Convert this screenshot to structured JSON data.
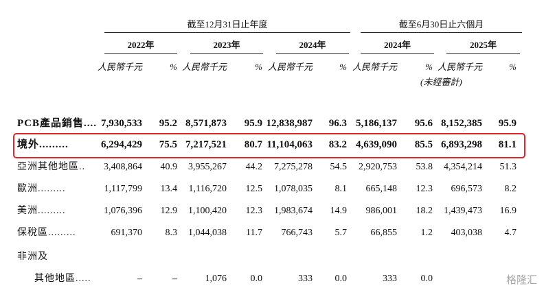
{
  "header": {
    "period_groups": [
      {
        "label": "截至12月31日止年度"
      },
      {
        "label": "截至6月30日止六個月"
      }
    ],
    "years": [
      "2022年",
      "2023年",
      "2024年",
      "2024年",
      "2025年"
    ],
    "amount_unit": "人民幣千元",
    "percent_unit": "%",
    "unaudited": "(未經審計)"
  },
  "table": {
    "rows": [
      {
        "label": "PCB產品銷售....",
        "bold": true,
        "cells": [
          "7,930,533",
          "95.2",
          "8,571,873",
          "95.9",
          "12,838,987",
          "96.3",
          "5,186,137",
          "95.6",
          "8,152,385",
          "95.9"
        ]
      },
      {
        "label": "境外.........",
        "bold": true,
        "highlight": true,
        "cells": [
          "6,294,429",
          "75.5",
          "7,217,521",
          "80.7",
          "11,104,063",
          "83.2",
          "4,639,090",
          "85.5",
          "6,893,298",
          "81.1"
        ]
      },
      {
        "label": "亞洲其他地區..",
        "cells": [
          "3,408,864",
          "40.9",
          "3,955,267",
          "44.2",
          "7,275,278",
          "54.5",
          "2,920,753",
          "53.8",
          "4,354,214",
          "51.3"
        ]
      },
      {
        "label": "歐洲.........",
        "cells": [
          "1,117,799",
          "13.4",
          "1,116,720",
          "12.5",
          "1,078,035",
          "8.1",
          "665,148",
          "12.3",
          "696,573",
          "8.2"
        ]
      },
      {
        "label": "美洲.........",
        "cells": [
          "1,076,396",
          "12.9",
          "1,100,420",
          "12.3",
          "1,983,674",
          "14.9",
          "986,001",
          "18.2",
          "1,439,473",
          "16.9"
        ]
      },
      {
        "label": "保稅區.........",
        "cells": [
          "691,370",
          "8.3",
          "1,044,038",
          "11.7",
          "766,743",
          "5.7",
          "66,855",
          "1.2",
          "403,038",
          "4.7"
        ]
      },
      {
        "label": "非洲及",
        "sublabel": "其他地區.....",
        "cells": [
          "–",
          "–",
          "1,076",
          "0.0",
          "333",
          "0.0",
          "333",
          "0.0"
        ]
      }
    ]
  },
  "watermark": "格隆汇"
}
